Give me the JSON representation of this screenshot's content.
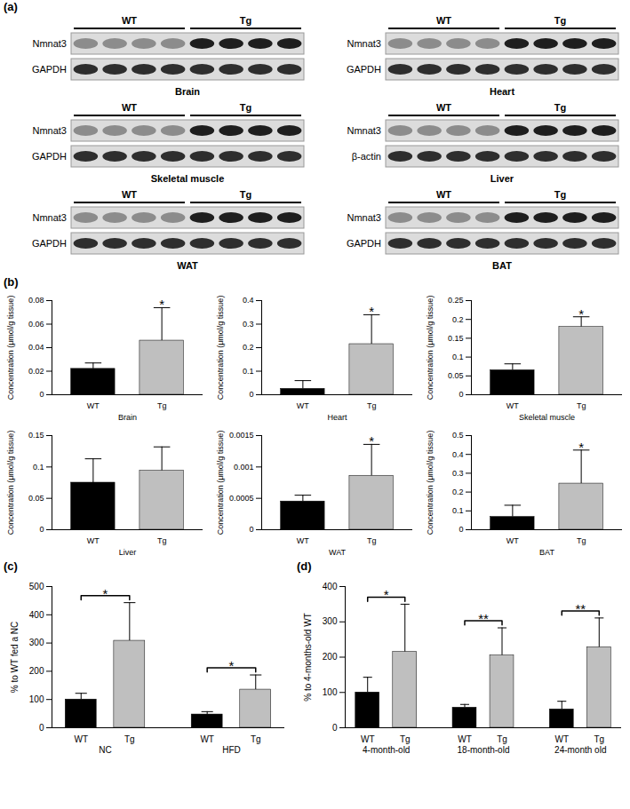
{
  "blots": {
    "panel": "(a)",
    "groups": [
      "WT",
      "Tg"
    ],
    "items": [
      {
        "name": "Brain",
        "rows": [
          "Nmnat3",
          "GAPDH"
        ]
      },
      {
        "name": "Heart",
        "rows": [
          "Nmnat3",
          "GAPDH"
        ]
      },
      {
        "name": "Skeletal muscle",
        "rows": [
          "Nmnat3",
          "GAPDH"
        ]
      },
      {
        "name": "Liver",
        "rows": [
          "Nmnat3",
          "β-actin"
        ]
      },
      {
        "name": "WAT",
        "rows": [
          "Nmnat3",
          "GAPDH"
        ]
      },
      {
        "name": "BAT",
        "rows": [
          "Nmnat3",
          "GAPDH"
        ]
      }
    ]
  },
  "chart_data": [
    {
      "type": "bar",
      "panel": "(b)",
      "x_label": "Brain",
      "y_label": "Concentration (μmol/g tissue)",
      "categories": [
        "WT",
        "Tg"
      ],
      "values": [
        0.022,
        0.046
      ],
      "errors": [
        0.005,
        0.028
      ],
      "colors": [
        "#000000",
        "#bfbfbf"
      ],
      "ylim": [
        0,
        0.08
      ],
      "yticks": [
        0,
        0.02,
        0.04,
        0.06,
        0.08
      ],
      "annotations": [
        {
          "category": "Tg",
          "text": "*"
        }
      ]
    },
    {
      "type": "bar",
      "x_label": "Heart",
      "y_label": "Concentration (μmol/g tissue)",
      "categories": [
        "WT",
        "Tg"
      ],
      "values": [
        0.025,
        0.215
      ],
      "errors": [
        0.035,
        0.125
      ],
      "colors": [
        "#000000",
        "#bfbfbf"
      ],
      "ylim": [
        0,
        0.4
      ],
      "yticks": [
        0,
        0.1,
        0.2,
        0.3,
        0.4
      ],
      "annotations": [
        {
          "category": "Tg",
          "text": "*"
        }
      ]
    },
    {
      "type": "bar",
      "x_label": "Skeletal muscle",
      "y_label": "Concentration (μmol/g tissue)",
      "categories": [
        "WT",
        "Tg"
      ],
      "values": [
        0.065,
        0.18
      ],
      "errors": [
        0.017,
        0.027
      ],
      "colors": [
        "#000000",
        "#bfbfbf"
      ],
      "ylim": [
        0,
        0.25
      ],
      "yticks": [
        0,
        0.05,
        0.1,
        0.15,
        0.2,
        0.25
      ],
      "annotations": [
        {
          "category": "Tg",
          "text": "*"
        }
      ]
    },
    {
      "type": "bar",
      "x_label": "Liver",
      "y_label": "Concentration (μmol/g tissue)",
      "categories": [
        "WT",
        "Tg"
      ],
      "values": [
        0.075,
        0.094
      ],
      "errors": [
        0.038,
        0.038
      ],
      "colors": [
        "#000000",
        "#bfbfbf"
      ],
      "ylim": [
        0,
        0.15
      ],
      "yticks": [
        0,
        0.05,
        0.1,
        0.15
      ]
    },
    {
      "type": "bar",
      "x_label": "WAT",
      "y_label": "Concentration (μmol/g tissue)",
      "categories": [
        "WT",
        "Tg"
      ],
      "values": [
        0.00045,
        0.00086
      ],
      "errors": [
        0.0001,
        0.0005
      ],
      "colors": [
        "#000000",
        "#bfbfbf"
      ],
      "ylim": [
        0,
        0.0015
      ],
      "yticks": [
        0,
        0.0005,
        0.001,
        0.0015
      ],
      "annotations": [
        {
          "category": "Tg",
          "text": "*"
        }
      ]
    },
    {
      "type": "bar",
      "x_label": "BAT",
      "y_label": "Concentration (μmol/g tissue)",
      "categories": [
        "WT",
        "Tg"
      ],
      "values": [
        0.068,
        0.245
      ],
      "errors": [
        0.062,
        0.178
      ],
      "colors": [
        "#000000",
        "#bfbfbf"
      ],
      "ylim": [
        0,
        0.5
      ],
      "yticks": [
        0,
        0.1,
        0.2,
        0.3,
        0.4,
        0.5
      ],
      "annotations": [
        {
          "category": "Tg",
          "text": "*"
        }
      ]
    },
    {
      "type": "grouped_bar",
      "panel": "(c)",
      "y_label": "% to WT fed a NC",
      "categories": [
        "NC",
        "HFD"
      ],
      "series": [
        {
          "name": "WT",
          "color": "#000000",
          "values": [
            100,
            47
          ],
          "errors": [
            22,
            10
          ]
        },
        {
          "name": "Tg",
          "color": "#bfbfbf",
          "values": [
            308,
            135
          ],
          "errors": [
            135,
            52
          ]
        }
      ],
      "significance": [
        "*",
        "*"
      ],
      "ylim": [
        0,
        500
      ],
      "yticks": [
        0,
        100,
        200,
        300,
        400,
        500
      ]
    },
    {
      "type": "grouped_bar",
      "panel": "(d)",
      "y_label": "% to 4-months-old WT",
      "categories": [
        "4-month-old",
        "18-month-old",
        "24-month old"
      ],
      "series": [
        {
          "name": "WT",
          "color": "#000000",
          "values": [
            100,
            57,
            52
          ],
          "errors": [
            43,
            9,
            23
          ]
        },
        {
          "name": "Tg",
          "color": "#bfbfbf",
          "values": [
            215,
            205,
            228
          ],
          "errors": [
            135,
            78,
            83
          ]
        }
      ],
      "significance": [
        "*",
        "**",
        "**"
      ],
      "ylim": [
        0,
        400
      ],
      "yticks": [
        0,
        100,
        200,
        300,
        400
      ]
    }
  ]
}
